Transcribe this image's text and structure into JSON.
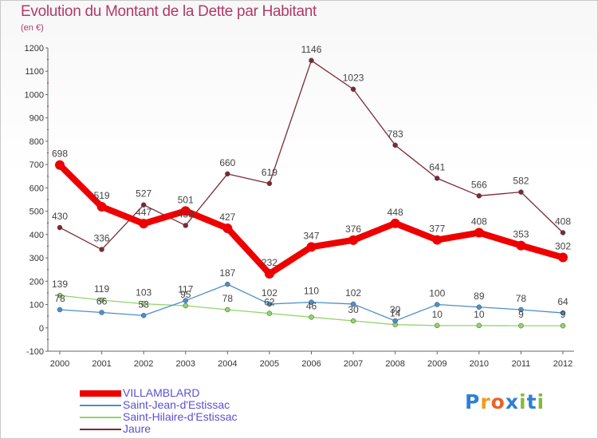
{
  "title": "Evolution du Montant de la Dette par Habitant",
  "unit": "(en €)",
  "logo": "Proxiti",
  "chart_data": {
    "type": "line",
    "x": [
      "2000",
      "2001",
      "2002",
      "2003",
      "2004",
      "2005",
      "2006",
      "2007",
      "2008",
      "2009",
      "2010",
      "2011",
      "2012"
    ],
    "ylim": [
      -100,
      1200
    ],
    "yticks": [
      -100,
      0,
      100,
      200,
      300,
      400,
      500,
      600,
      700,
      800,
      900,
      1000,
      1100,
      1200
    ],
    "grid": false,
    "legend_position": "bottom-left",
    "series": [
      {
        "name": "VILLAMBLARD",
        "color": "#ee0000",
        "values": [
          698,
          519,
          447,
          501,
          427,
          232,
          347,
          376,
          448,
          377,
          408,
          353,
          302
        ]
      },
      {
        "name": "Saint-Jean-d'Estissac",
        "color": "#4d8fc9",
        "values": [
          78,
          66,
          53,
          117,
          187,
          102,
          110,
          102,
          30,
          100,
          89,
          78,
          64
        ]
      },
      {
        "name": "Saint-Hilaire-d'Estissac",
        "color": "#92d46b",
        "values": [
          139,
          119,
          103,
          95,
          78,
          62,
          46,
          30,
          14,
          10,
          10,
          9,
          9
        ]
      },
      {
        "name": "Jaure",
        "color": "#7a2a36",
        "values": [
          430,
          336,
          527,
          439,
          660,
          619,
          1146,
          1023,
          783,
          641,
          566,
          582,
          408
        ]
      }
    ],
    "labels": {
      "VILLAMBLARD": [
        "698",
        "519",
        "447",
        "501",
        "427",
        "232",
        "347",
        "376",
        "448",
        "377",
        "408",
        "353",
        "302"
      ],
      "Saint-Jean-d'Estissac": [
        "78",
        "66",
        "53",
        "117",
        "187",
        "102",
        "110",
        "102",
        "30",
        "100",
        "89",
        "78",
        "64"
      ],
      "Saint-Hilaire-d'Estissac": [
        "139",
        "119",
        "103",
        "95",
        "78",
        "62",
        "46",
        "30",
        "14",
        "10",
        "10",
        "9",
        "9"
      ],
      "Jaure": [
        "430",
        "336",
        "527",
        "439",
        "660",
        "619",
        "1146",
        "1023",
        "783",
        "641",
        "566",
        "582",
        "408"
      ]
    }
  }
}
